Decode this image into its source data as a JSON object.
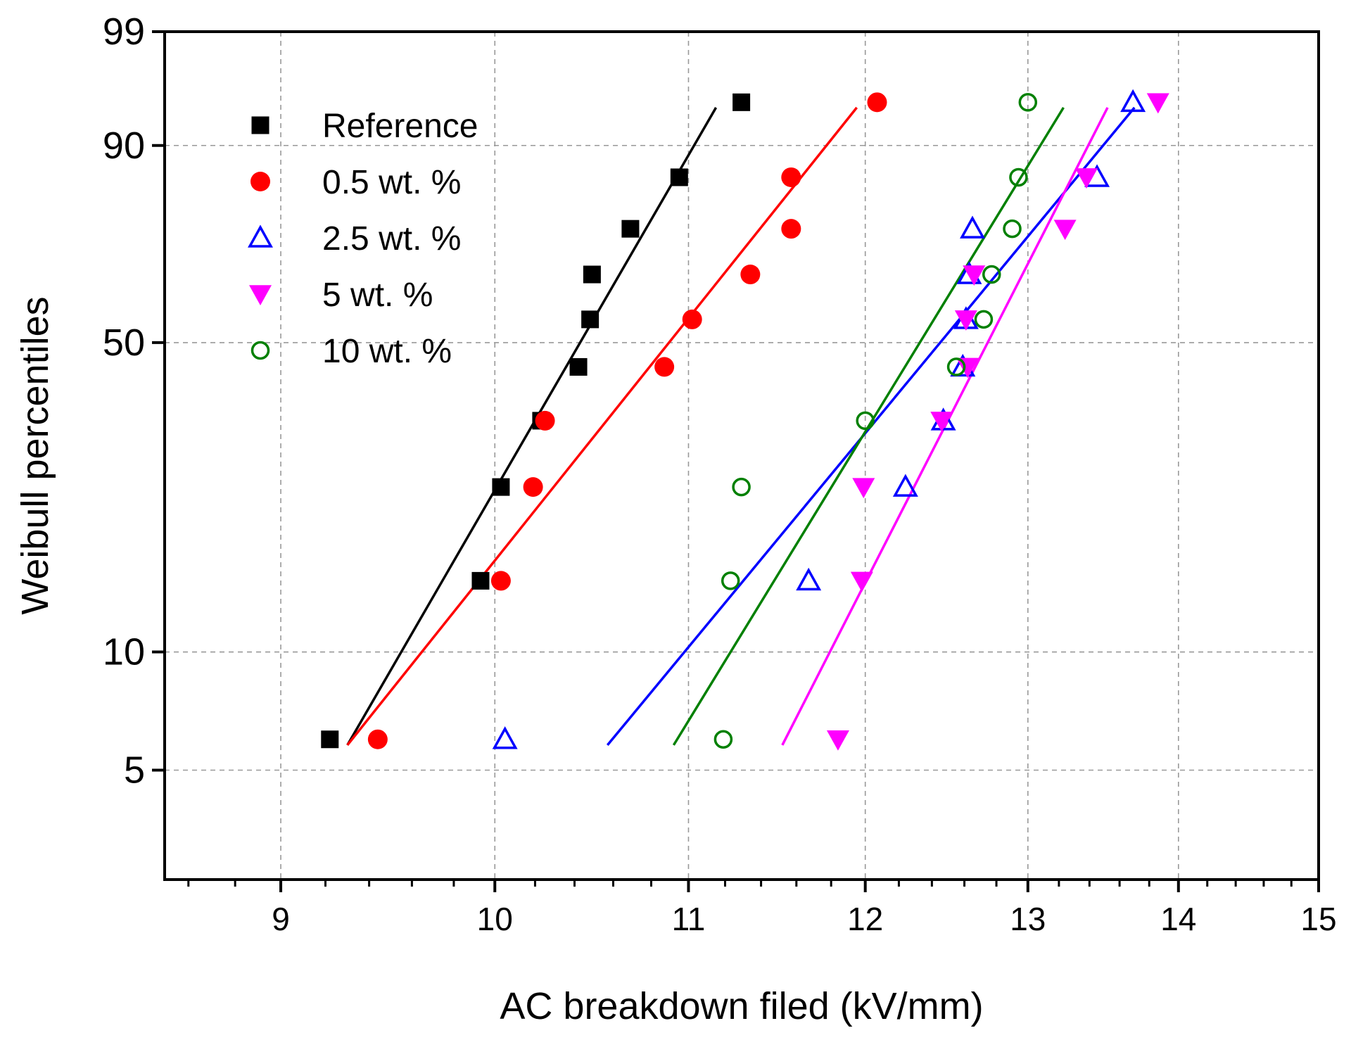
{
  "chart_data": {
    "type": "scatter",
    "title": "",
    "xlabel": "AC breakdown filed (kV/mm)",
    "ylabel": "Weibull percentiles",
    "x_scale": "log",
    "y_scale": "weibull",
    "xlim": [
      8.5,
      15
    ],
    "ylim": [
      2.6,
      99
    ],
    "x_ticks": [
      9,
      10,
      11,
      12,
      13,
      14,
      15
    ],
    "y_ticks": [
      5,
      10,
      50,
      90,
      99
    ],
    "grid": true,
    "legend_position": "top-left",
    "series": [
      {
        "name": "Reference",
        "marker": "square-filled",
        "color": "#000000",
        "x": [
          9.22,
          9.93,
          10.03,
          10.23,
          10.42,
          10.48,
          10.49,
          10.69,
          10.95,
          11.29
        ],
        "y": [
          6.0,
          15.0,
          25.0,
          35.0,
          45.0,
          55.0,
          65.0,
          75.0,
          85.0,
          95.0
        ],
        "fit": {
          "x": [
            9.3,
            11.15
          ],
          "y": [
            5.8,
            94.5
          ]
        }
      },
      {
        "name": "0.5 wt. %",
        "marker": "circle-filled",
        "color": "#ff0000",
        "x": [
          9.44,
          10.03,
          10.19,
          10.25,
          10.87,
          11.02,
          11.34,
          11.57,
          11.57,
          12.07
        ],
        "y": [
          6.0,
          15.0,
          25.0,
          35.0,
          45.0,
          55.0,
          65.0,
          75.0,
          85.0,
          95.0
        ],
        "fit": {
          "x": [
            9.3,
            11.95
          ],
          "y": [
            5.8,
            94.5
          ]
        }
      },
      {
        "name": "2.5 wt. %",
        "marker": "triangle-up-open",
        "color": "#0000ff",
        "x": [
          10.05,
          11.67,
          12.24,
          12.47,
          12.59,
          12.61,
          12.63,
          12.65,
          13.45,
          13.69
        ],
        "y": [
          6.0,
          15.0,
          25.0,
          35.0,
          45.0,
          55.0,
          65.0,
          75.0,
          85.0,
          95.0
        ],
        "fit": {
          "x": [
            10.57,
            13.7
          ],
          "y": [
            5.8,
            94.5
          ]
        }
      },
      {
        "name": "5 wt. %",
        "marker": "triangle-down-filled",
        "color": "#ff00ff",
        "x": [
          11.84,
          11.98,
          11.99,
          12.46,
          12.62,
          12.61,
          12.66,
          13.24,
          13.38,
          13.86
        ],
        "y": [
          6.0,
          15.0,
          25.0,
          35.0,
          45.0,
          55.0,
          65.0,
          75.0,
          85.0,
          95.0
        ],
        "fit": {
          "x": [
            11.52,
            13.52
          ],
          "y": [
            5.8,
            94.5
          ]
        }
      },
      {
        "name": "10 wt. %",
        "marker": "circle-open",
        "color": "#008000",
        "x": [
          11.19,
          11.23,
          11.29,
          12.0,
          12.55,
          12.72,
          12.77,
          12.9,
          12.94,
          13.0
        ],
        "y": [
          6.0,
          15.0,
          25.0,
          35.0,
          45.0,
          55.0,
          65.0,
          75.0,
          85.0,
          95.0
        ],
        "fit": {
          "x": [
            10.92,
            13.23
          ],
          "y": [
            5.8,
            94.5
          ]
        }
      }
    ]
  }
}
